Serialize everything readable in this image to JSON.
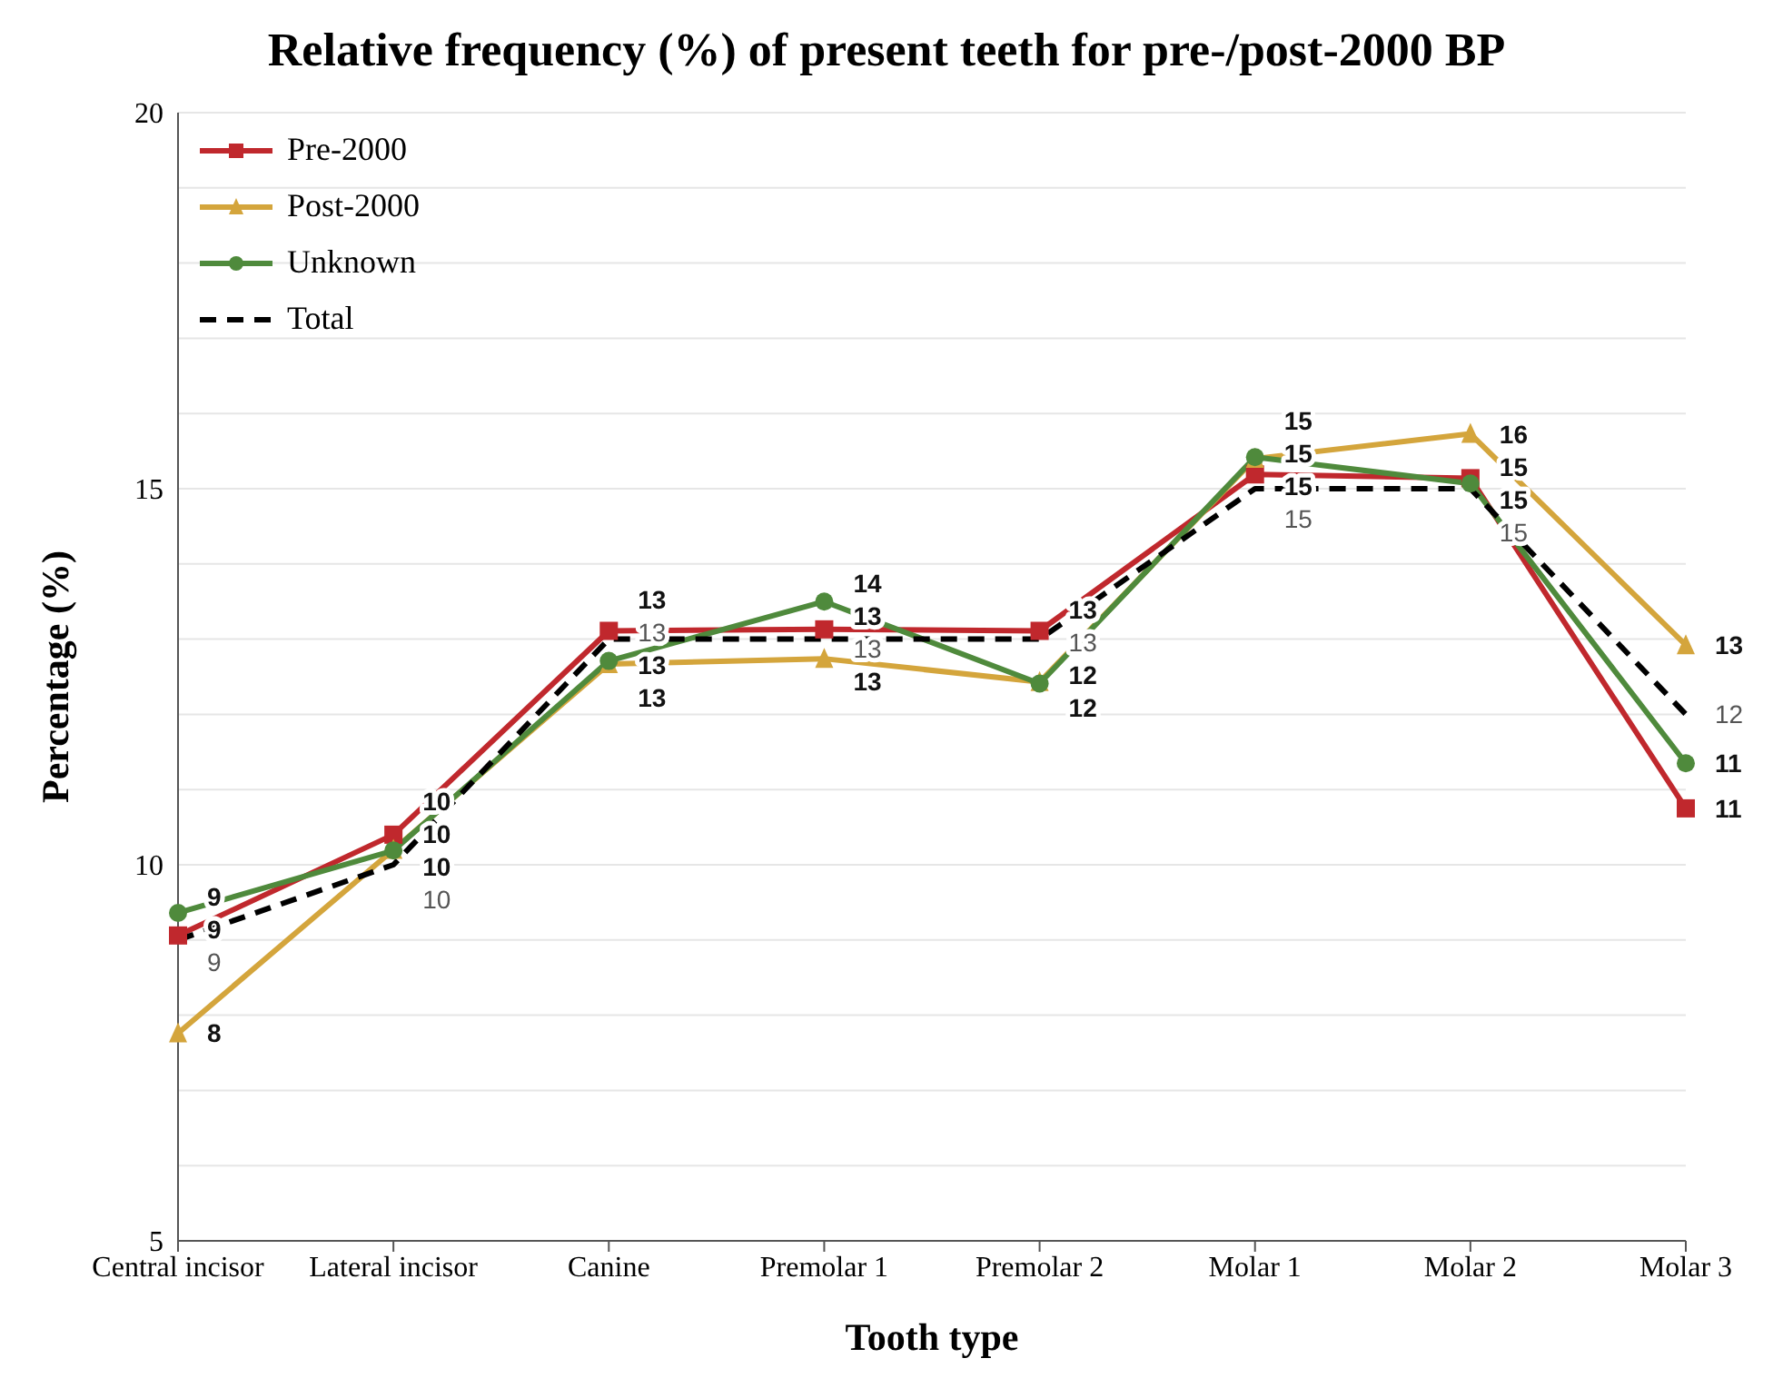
{
  "chart_data": {
    "type": "line",
    "title": "Relative frequency (%) of present teeth for pre-/post-2000 BP",
    "xlabel": "Tooth type",
    "ylabel": "Percentage (%)",
    "categories": [
      "Central incisor",
      "Lateral incisor",
      "Canine",
      "Premolar 1",
      "Premolar 2",
      "Molar 1",
      "Molar 2",
      "Molar 3"
    ],
    "series": [
      {
        "name": "Pre-2000",
        "color": "#c0282d",
        "marker": "square",
        "line_style": "solid",
        "values": [
          9.06,
          10.4,
          13.11,
          13.13,
          13.11,
          15.19,
          15.14,
          10.75
        ],
        "value_labels": [
          "9",
          "10",
          "13",
          "13",
          "13",
          "15",
          "15",
          "11"
        ]
      },
      {
        "name": "Post-2000",
        "color": "#d4a53c",
        "marker": "triangle",
        "line_style": "solid",
        "values": [
          7.76,
          10.2,
          12.67,
          12.74,
          12.43,
          15.4,
          15.73,
          12.92
        ],
        "value_labels": [
          "8",
          "10",
          "13",
          "13",
          "12",
          "15",
          "16",
          "13"
        ]
      },
      {
        "name": "Unknown",
        "color": "#4f8a3c",
        "marker": "circle",
        "line_style": "solid",
        "values": [
          9.36,
          10.19,
          12.71,
          13.5,
          12.41,
          15.42,
          15.07,
          11.35
        ],
        "value_labels": [
          "9",
          "10",
          "13",
          "14",
          "12",
          "15",
          "15",
          "11"
        ]
      },
      {
        "name": "Total",
        "color": "#000000",
        "marker": "none",
        "line_style": "dashed",
        "values": [
          9.0,
          10.0,
          13.0,
          13.0,
          13.0,
          15.0,
          15.0,
          12.0
        ],
        "value_labels": [
          "9",
          "10",
          "13",
          "13",
          "13",
          "15",
          "15",
          "12"
        ]
      }
    ],
    "ylim": [
      5,
      20
    ],
    "yticks": [
      5,
      {
        "value": 6,
        "label": null
      },
      {
        "value": 7,
        "label": null
      },
      {
        "value": 8,
        "label": null
      },
      {
        "value": 9,
        "label": null
      },
      10,
      {
        "value": 11,
        "label": null
      },
      {
        "value": 12,
        "label": null
      },
      {
        "value": 13,
        "label": null
      },
      {
        "value": 14,
        "label": null
      },
      15,
      {
        "value": 16,
        "label": null
      },
      {
        "value": 17,
        "label": null
      },
      {
        "value": 18,
        "label": null
      },
      {
        "value": 19,
        "label": null
      },
      20
    ],
    "grid": "y",
    "legend": "top left"
  }
}
